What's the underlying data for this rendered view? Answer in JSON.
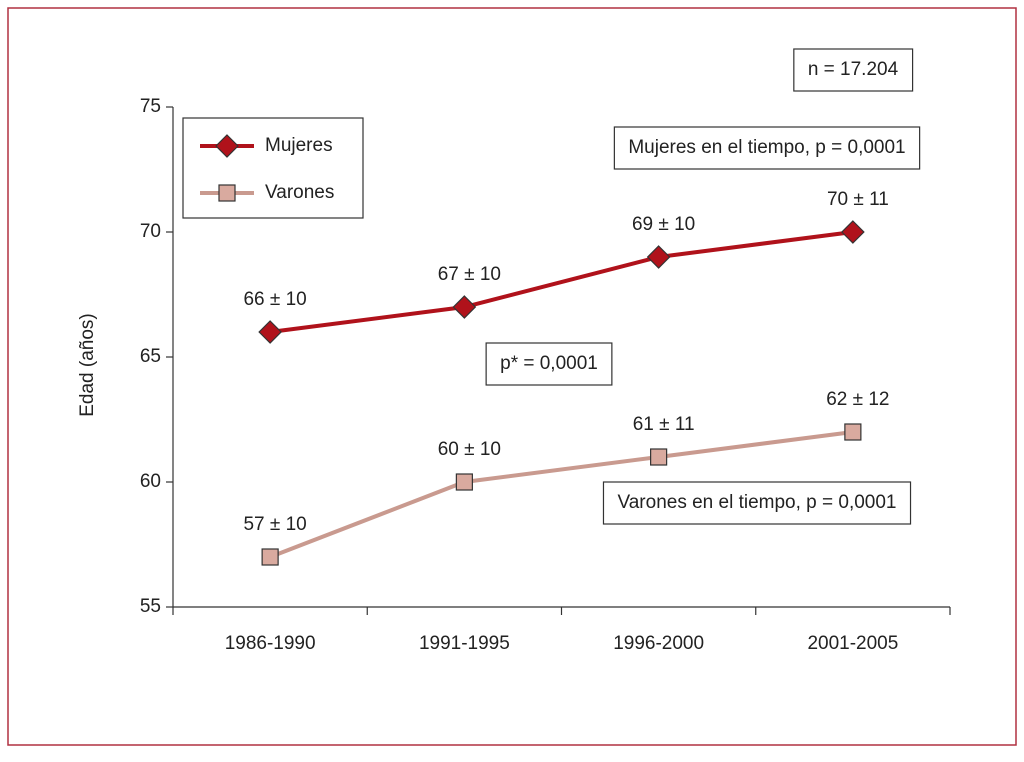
{
  "chart_data": {
    "type": "line",
    "y_label": "Edad (años)",
    "categories": [
      "1986-1990",
      "1991-1995",
      "1996-2000",
      "2001-2005"
    ],
    "series": [
      {
        "name": "Mujeres",
        "color": "#b0121b",
        "marker": "diamond",
        "values": [
          66,
          67,
          69,
          70
        ],
        "value_labels": [
          "66 ± 10",
          "67 ± 10",
          "69 ± 10",
          "70 ± 11"
        ]
      },
      {
        "name": "Varones",
        "color": "#c99a8f",
        "marker": "square",
        "values": [
          57,
          60,
          61,
          62
        ],
        "value_labels": [
          "57 ± 10",
          "60 ± 10",
          "61 ± 11",
          "62 ± 12"
        ]
      }
    ],
    "ylim": [
      55,
      75
    ],
    "yticks": [
      55,
      60,
      65,
      70,
      75
    ],
    "grid": false,
    "legend": "upper left",
    "annotations": [
      "n = 17.204",
      "Mujeres en el tiempo, p = 0,0001",
      "p* = 0,0001",
      "Varones en el tiempo, p = 0,0001"
    ]
  }
}
